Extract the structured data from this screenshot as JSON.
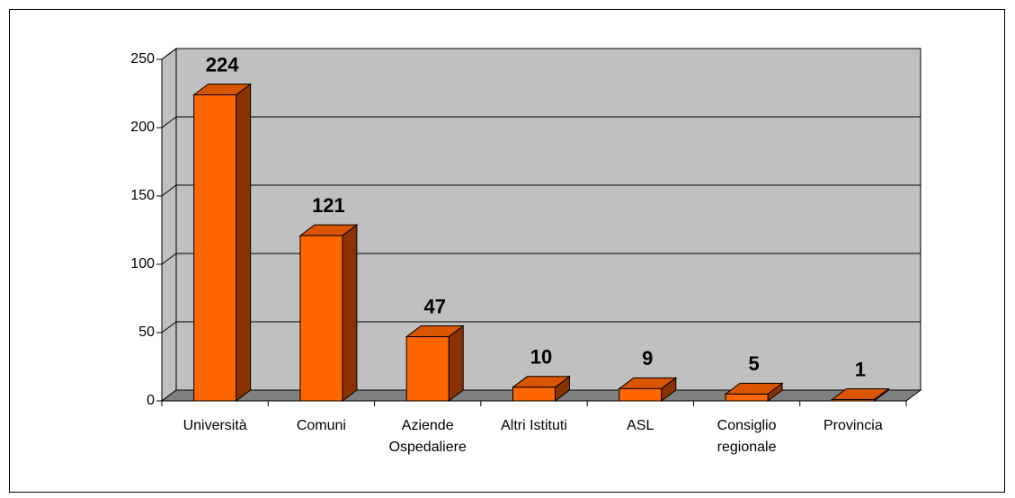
{
  "chart_data": {
    "type": "bar3d",
    "categories": [
      "Università",
      "Comuni",
      "Aziende Ospedaliere",
      "Altri Istituti",
      "ASL",
      "Consiglio regionale",
      "Provincia"
    ],
    "values": [
      224,
      121,
      47,
      10,
      9,
      5,
      1
    ],
    "color": "#ff6600",
    "ylim": [
      0,
      250
    ],
    "yticks": [
      0,
      50,
      100,
      150,
      200,
      250
    ],
    "grid": true
  }
}
